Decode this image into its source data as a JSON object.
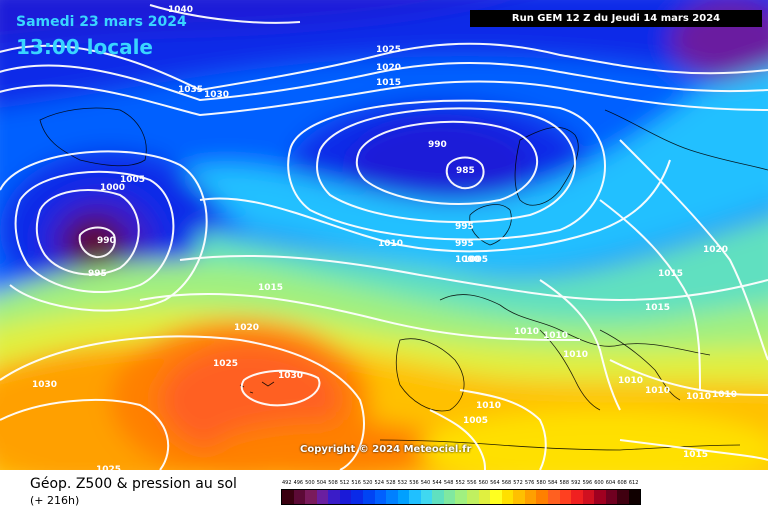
{
  "header": {
    "valid_date": "Samedi 23 mars 2024",
    "local_time": "13:00 locale",
    "run": "Run GEM 12 Z du Jeudi 14 mars 2024"
  },
  "footer": {
    "product_title": "Géop. Z500 & pression au sol",
    "lead_time": "(+ 216h)"
  },
  "copyright": "Copyright © 2024 Meteociel.fr",
  "legend": {
    "values": [
      "492",
      "496",
      "500",
      "504",
      "508",
      "512",
      "516",
      "520",
      "524",
      "528",
      "532",
      "536",
      "540",
      "544",
      "548",
      "552",
      "556",
      "560",
      "564",
      "568",
      "572",
      "576",
      "580",
      "584",
      "588",
      "592",
      "596",
      "600",
      "604",
      "608",
      "612"
    ],
    "colors": [
      "#3a0010",
      "#5c0a36",
      "#7a1b5c",
      "#6a1fa0",
      "#3a1cc8",
      "#1a1ad8",
      "#0a2ae8",
      "#0044f4",
      "#0060ff",
      "#0080ff",
      "#00a0ff",
      "#20c0ff",
      "#40d8f0",
      "#60e0c0",
      "#80e8a0",
      "#a0f080",
      "#c0f060",
      "#e0f040",
      "#ffff20",
      "#ffe000",
      "#ffc000",
      "#ffa000",
      "#ff8000",
      "#ff6020",
      "#ff4020",
      "#f02020",
      "#d01020",
      "#a00020",
      "#700020",
      "#400010",
      "#100000"
    ]
  },
  "isobars": [
    {
      "text": "1040"
    },
    {
      "text": "1035"
    },
    {
      "text": "1030"
    },
    {
      "text": "1025"
    },
    {
      "text": "1020"
    },
    {
      "text": "1015"
    },
    {
      "text": "990"
    },
    {
      "text": "985"
    },
    {
      "text": "1005"
    },
    {
      "text": "1000"
    },
    {
      "text": "995"
    },
    {
      "text": "990"
    },
    {
      "text": "995"
    },
    {
      "text": "995"
    },
    {
      "text": "1000"
    },
    {
      "text": "1005"
    },
    {
      "text": "1010"
    },
    {
      "text": "1015"
    },
    {
      "text": "1020"
    },
    {
      "text": "1025"
    },
    {
      "text": "1030"
    },
    {
      "text": "1030"
    },
    {
      "text": "1025"
    },
    {
      "text": "1020"
    },
    {
      "text": "1015"
    },
    {
      "text": "1015"
    },
    {
      "text": "1010"
    },
    {
      "text": "1010"
    },
    {
      "text": "1010"
    },
    {
      "text": "1010"
    },
    {
      "text": "1010"
    },
    {
      "text": "1010"
    },
    {
      "text": "1010"
    },
    {
      "text": "1010"
    },
    {
      "text": "1005"
    },
    {
      "text": "1015"
    }
  ]
}
